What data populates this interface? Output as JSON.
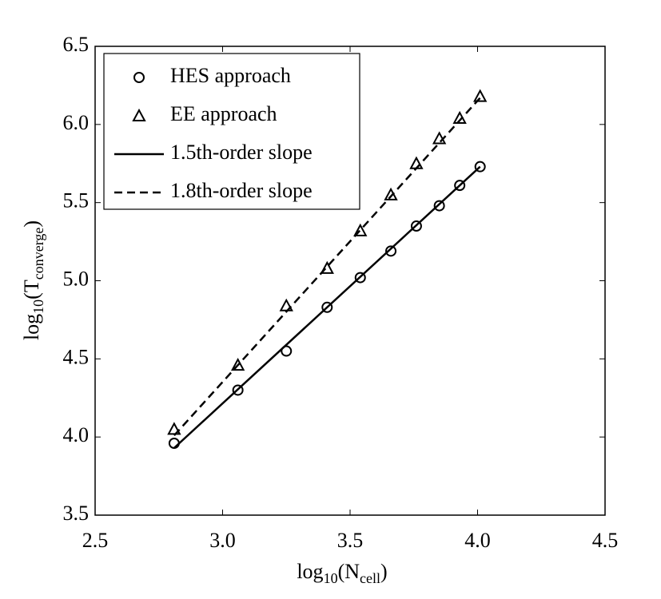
{
  "chart_data": {
    "type": "scatter",
    "xlabel": [
      {
        "text": "log"
      },
      {
        "text": "10",
        "sub": true
      },
      {
        "text": "(N"
      },
      {
        "text": "cell",
        "sub": true
      },
      {
        "text": ")"
      }
    ],
    "ylabel": [
      {
        "text": "log"
      },
      {
        "text": "10",
        "sub": true
      },
      {
        "text": "(T"
      },
      {
        "text": "converge",
        "sub": true
      },
      {
        "text": ")"
      }
    ],
    "xlim": [
      2.5,
      4.5
    ],
    "xticks": [
      2.5,
      {
        "value": 3,
        "label": "3.0"
      },
      3.5,
      {
        "value": 4,
        "label": "4.0"
      },
      4.5
    ],
    "ylim": [
      3.5,
      6.5
    ],
    "yticks": [
      3.5,
      {
        "value": 4,
        "label": "4.0"
      },
      4.5,
      {
        "value": 5,
        "label": "5.0"
      },
      5.5,
      {
        "value": 6,
        "label": "6.0"
      },
      6.5
    ],
    "legend": "upper left",
    "series": [
      {
        "name": "HES approach",
        "style": "circle",
        "color": "#000000",
        "x": [
          2.81,
          3.06,
          3.25,
          3.41,
          3.54,
          3.66,
          3.76,
          3.85,
          3.93,
          4.01
        ],
        "values": [
          3.96,
          4.3,
          4.55,
          4.83,
          5.02,
          5.19,
          5.35,
          5.48,
          5.61,
          5.73
        ]
      },
      {
        "name": "EE approach",
        "style": "triangle",
        "color": "#000000",
        "x": [
          2.81,
          3.06,
          3.25,
          3.41,
          3.54,
          3.66,
          3.76,
          3.85,
          3.93,
          4.01
        ],
        "values": [
          4.05,
          4.46,
          4.84,
          5.08,
          5.32,
          5.55,
          5.75,
          5.91,
          6.04,
          6.18
        ]
      },
      {
        "name": "1.5th-order slope",
        "style": "solid",
        "color": "#000000",
        "x": [
          2.81,
          4.01
        ],
        "values": [
          3.93,
          5.73
        ]
      },
      {
        "name": "1.8th-order slope",
        "style": "dashed",
        "color": "#000000",
        "x": [
          2.81,
          4.01
        ],
        "values": [
          4.01,
          6.17
        ]
      }
    ]
  }
}
